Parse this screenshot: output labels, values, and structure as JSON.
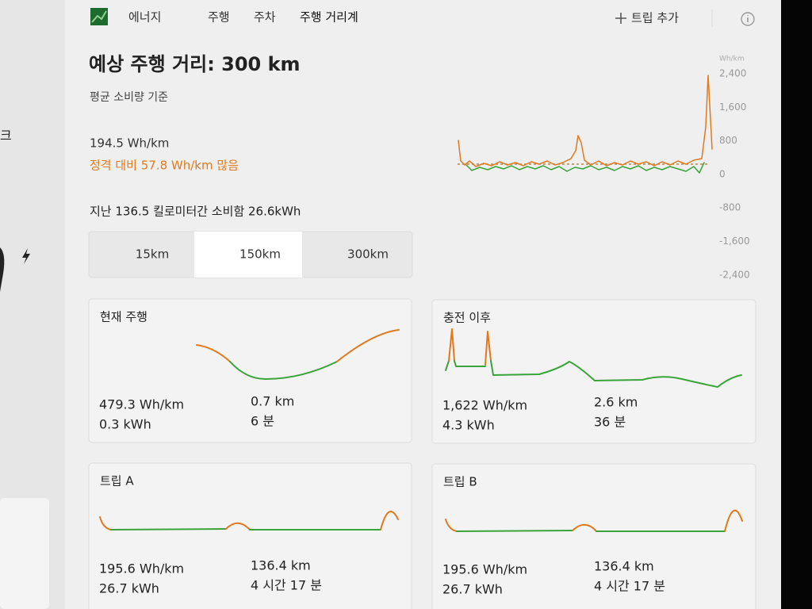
{
  "sidebar": {
    "label": "크"
  },
  "header": {
    "title": "에너지",
    "tabs": [
      "주행",
      "주차",
      "주행 거리계"
    ],
    "add_trip": "트립 추가"
  },
  "range": {
    "title": "예상 주행 거리: 300 km",
    "subtitle": "평균 소비량 기준",
    "consumption": "194.5 Wh/km",
    "comparison": "정격 대비 57.8 Wh/km 많음",
    "summary": "지난 136.5 킬로미터간 소비함 26.6kWh"
  },
  "distance_options": {
    "options": [
      "15km",
      "150km",
      "300km"
    ],
    "selected": 1
  },
  "chart": {
    "unit": "Wh/km",
    "yticks": [
      "2,400",
      "1,600",
      "800",
      "0",
      "-800",
      "-1,600",
      "-2,400"
    ]
  },
  "cards": [
    {
      "title": "현재 주행",
      "stats": [
        "479.3 Wh/km",
        "0.3 kWh",
        "0.7 km",
        "6 분"
      ]
    },
    {
      "title": "충전 이후",
      "stats": [
        "1,622 Wh/km",
        "4.3 kWh",
        "2.6 km",
        "36 분"
      ]
    },
    {
      "title": "트립 A",
      "stats": [
        "195.6 Wh/km",
        "26.7 kWh",
        "136.4 km",
        "4 시간 17 분"
      ]
    },
    {
      "title": "트립 B",
      "stats": [
        "195.6 Wh/km",
        "26.7 kWh",
        "136.4 km",
        "4 시간 17 분"
      ]
    }
  ]
}
